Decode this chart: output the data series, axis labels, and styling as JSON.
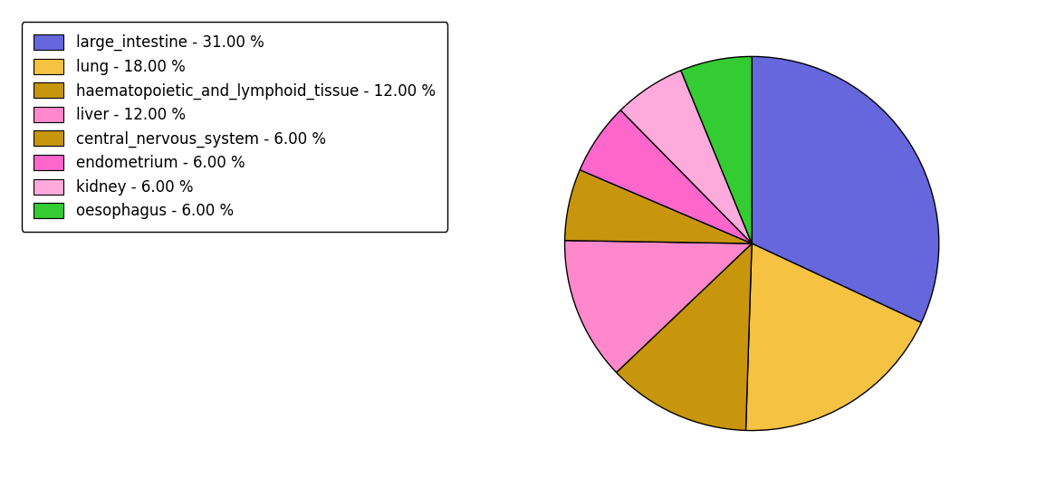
{
  "labels": [
    "large_intestine - 31.00 %",
    "lung - 18.00 %",
    "haematopoietic_and_lymphoid_tissue - 12.00 %",
    "liver - 12.00 %",
    "central_nervous_system - 6.00 %",
    "endometrium - 6.00 %",
    "kidney - 6.00 %",
    "oesophagus - 6.00 %"
  ],
  "values": [
    31,
    18,
    12,
    12,
    6,
    6,
    6,
    6
  ],
  "colors": [
    "#6666dd",
    "#f5c242",
    "#c8960c",
    "#ff88cc",
    "#c8960c",
    "#ff66cc",
    "#ffaadd",
    "#33cc33"
  ],
  "startangle": 90,
  "figsize": [
    11.45,
    5.38
  ],
  "dpi": 100,
  "legend_fontsize": 12
}
